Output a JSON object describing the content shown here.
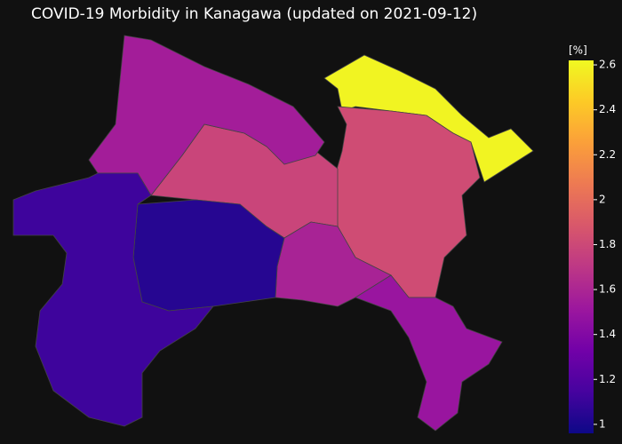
{
  "chart_data": {
    "type": "choropleth",
    "title": "COVID-19 Morbidity in Kanagawa  (updated on 2021-09-12)",
    "colorbar_title": "[%]",
    "colorscale": [
      "#0d0887",
      "#46039f",
      "#7201a8",
      "#9c179e",
      "#bd3786",
      "#d8576b",
      "#ed7953",
      "#fb9f3a",
      "#fdca26",
      "#f0f921"
    ],
    "zlim": [
      0.96,
      2.62
    ],
    "zticks": [
      1,
      1.2,
      1.4,
      1.6,
      1.8,
      2,
      2.2,
      2.4,
      2.6
    ],
    "values": [
      2.6,
      1.82,
      1.78,
      1.55,
      1.58,
      1.5,
      1.04,
      1.12
    ]
  }
}
